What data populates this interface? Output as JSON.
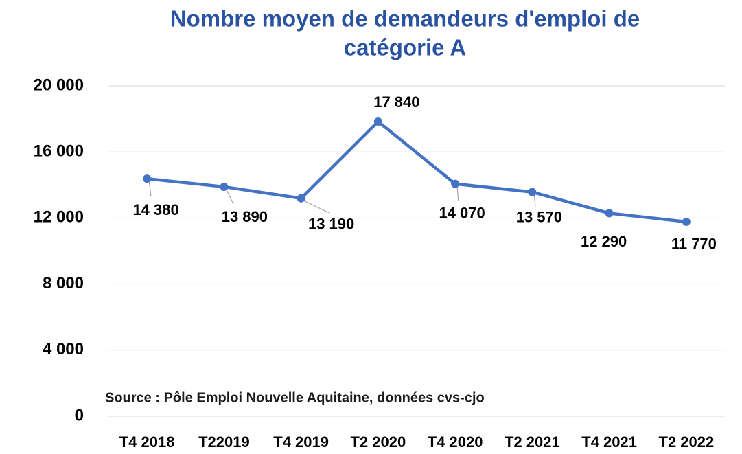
{
  "chart_data": {
    "type": "line",
    "title": "Nombre moyen de demandeurs d'emploi de",
    "subtitle": "catégorie A",
    "annotation": "Source : Pôle Emploi Nouvelle Aquitaine, données cvs-cjo",
    "categories": [
      "T4 2018",
      "T22019",
      "T4 2019",
      "T2 2020",
      "T4 2020",
      "T2 2021",
      "T4 2021",
      "T2 2022"
    ],
    "values": [
      14380,
      13890,
      13190,
      17840,
      14070,
      13570,
      12290,
      11770
    ],
    "value_labels": [
      "14 380",
      "13 890",
      "13 190",
      "17 840",
      "14 070",
      "13 570",
      "12 290",
      "11 770"
    ],
    "color": "#4472c4",
    "ylim": [
      0,
      20000
    ],
    "yticks": [
      {
        "value": 0,
        "label": "0"
      },
      {
        "value": 4000,
        "label": "4 000"
      },
      {
        "value": 8000,
        "label": "8 000"
      },
      {
        "value": 12000,
        "label": "12 000"
      },
      {
        "value": 16000,
        "label": "16 000"
      },
      {
        "value": 20000,
        "label": "20 000"
      }
    ],
    "grid": true
  }
}
